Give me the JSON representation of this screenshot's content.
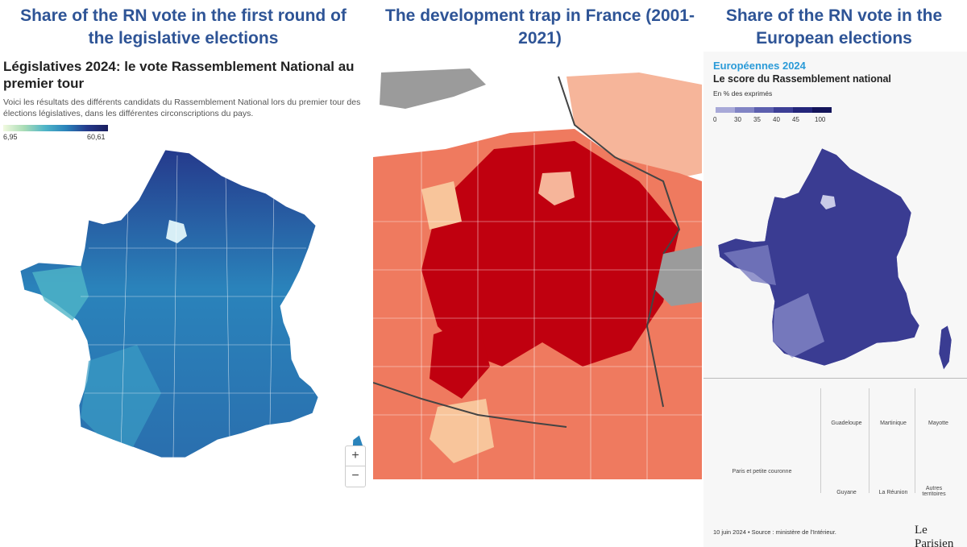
{
  "headings": {
    "left": "Share of the RN vote in the first round of the legislative elections",
    "middle": "The development trap in France (2001-2021)",
    "right": "Share of the RN vote in the European elections"
  },
  "left_panel": {
    "title": "Législatives 2024: le vote Rassemblement National au premier tour",
    "subtitle": "Voici les résultats des différents candidats du Rassemblement National lors du premier tour des élections législatives, dans les différentes circonscriptions du pays.",
    "legend": {
      "min": "6,95",
      "max": "60,61"
    },
    "zoom": {
      "in": "+",
      "out": "−"
    }
  },
  "right_panel": {
    "kicker": "Européennes 2024",
    "title": "Le score du Rassemblement national",
    "unit": "En % des exprimés",
    "legend_ticks": [
      "0",
      "30",
      "35",
      "40",
      "45",
      "100"
    ],
    "legend_colors": [
      "#a8a9d8",
      "#8184c4",
      "#5c5fae",
      "#3d3f96",
      "#24267a",
      "#14155a"
    ],
    "insets": [
      "Paris et petite couronne",
      "Guadeloupe",
      "Martinique",
      "Mayotte",
      "Guyane",
      "La Réunion",
      "Autres territoires"
    ],
    "footer": "10 juin 2024 • Source : ministère de l'Intérieur.",
    "logo": "Le Parisien"
  }
}
